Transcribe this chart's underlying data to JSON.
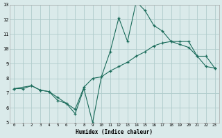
{
  "xlabel": "Humidex (Indice chaleur)",
  "bg_color": "#daeaea",
  "grid_color": "#b0cccc",
  "line_color": "#1a6b5a",
  "xlim": [
    -0.5,
    23.5
  ],
  "ylim": [
    5,
    13
  ],
  "xticks": [
    0,
    1,
    2,
    3,
    4,
    5,
    6,
    7,
    8,
    9,
    10,
    11,
    12,
    13,
    14,
    15,
    16,
    17,
    18,
    19,
    20,
    21,
    22,
    23
  ],
  "yticks": [
    5,
    6,
    7,
    8,
    9,
    10,
    11,
    12,
    13
  ],
  "series1_x": [
    0,
    1,
    2,
    3,
    4,
    5,
    6,
    7,
    8,
    9,
    10,
    11,
    12,
    13,
    14,
    15,
    16,
    17,
    18,
    19,
    20,
    21,
    22,
    23
  ],
  "series1_y": [
    7.3,
    7.3,
    7.5,
    7.2,
    7.1,
    6.7,
    6.3,
    5.9,
    7.4,
    8.0,
    8.1,
    8.5,
    8.8,
    9.1,
    9.5,
    9.8,
    10.2,
    10.4,
    10.5,
    10.3,
    10.1,
    9.5,
    8.8,
    8.7
  ],
  "series2_x": [
    0,
    2,
    3,
    4,
    5,
    6,
    7,
    8,
    9,
    10,
    11,
    12,
    13,
    14,
    15,
    16,
    17,
    18,
    19,
    20,
    21,
    22,
    23
  ],
  "series2_y": [
    7.3,
    7.5,
    7.2,
    7.1,
    6.5,
    6.3,
    5.6,
    7.3,
    5.0,
    8.1,
    9.8,
    12.1,
    10.5,
    13.2,
    12.6,
    11.6,
    11.2,
    10.5,
    10.5,
    10.5,
    9.5,
    9.5,
    8.7
  ]
}
